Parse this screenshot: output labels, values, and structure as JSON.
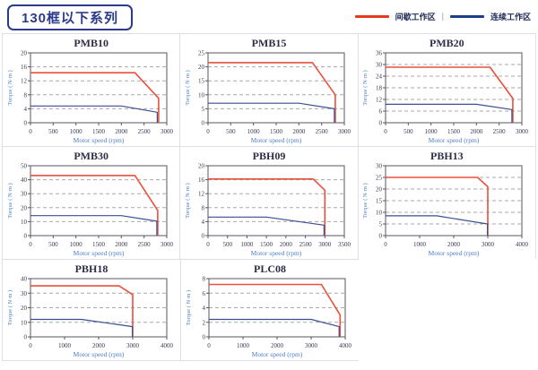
{
  "header": {
    "badge": "130框以下系列"
  },
  "legend": {
    "separator": "|",
    "items": [
      {
        "label": "间歇工作区",
        "color": "#e8391d",
        "icon": "red-line-swatch"
      },
      {
        "label": "连续工作区",
        "color": "#1e3c8c",
        "icon": "blue-line-swatch"
      }
    ]
  },
  "colors": {
    "red": "#e8503c",
    "blue": "#3a4e91",
    "legend_red": "#e8391d",
    "legend_blue": "#1e3c8c",
    "grid": "#a9a9ad",
    "axis": "#55555f",
    "tick_text": "#3a3a50",
    "axis_label": "#4d7fc4",
    "title_text": "#2e2e44",
    "card_border": "#dcdfe9",
    "badge": "#2c3a8c"
  },
  "chart_data": [
    {
      "type": "line",
      "title": "PMB10",
      "xlabel": "Motor speed (rpm)",
      "ylabel": "Torque ( N·m )",
      "xlim": [
        0,
        3000
      ],
      "xticks": [
        0,
        500,
        1000,
        1500,
        2000,
        2500,
        3000
      ],
      "ylim": [
        0,
        20
      ],
      "yticks": [
        0,
        4,
        8,
        12,
        16,
        20
      ],
      "grid": "horizontal-dashed",
      "legend_position": "none",
      "series": [
        {
          "name": "间歇工作区",
          "color": "red",
          "points": [
            [
              0,
              14.3
            ],
            [
              2300,
              14.3
            ],
            [
              2820,
              7
            ],
            [
              2820,
              0
            ]
          ]
        },
        {
          "name": "连续工作区",
          "color": "blue",
          "points": [
            [
              0,
              4.8
            ],
            [
              2000,
              4.8
            ],
            [
              2790,
              3
            ],
            [
              2790,
              0
            ]
          ]
        }
      ]
    },
    {
      "type": "line",
      "title": "PMB15",
      "xlabel": "Motor speed (rpm)",
      "ylabel": "Torque ( N·m )",
      "xlim": [
        0,
        3000
      ],
      "xticks": [
        0,
        500,
        1000,
        1500,
        2000,
        2500,
        3000
      ],
      "ylim": [
        0,
        25
      ],
      "yticks": [
        0,
        5,
        10,
        15,
        20,
        25
      ],
      "grid": "horizontal-dashed",
      "legend_position": "none",
      "series": [
        {
          "name": "间歇工作区",
          "color": "red",
          "points": [
            [
              0,
              21.5
            ],
            [
              2300,
              21.5
            ],
            [
              2800,
              10
            ],
            [
              2800,
              0
            ]
          ]
        },
        {
          "name": "连续工作区",
          "color": "blue",
          "points": [
            [
              0,
              7
            ],
            [
              2000,
              7
            ],
            [
              2780,
              5
            ],
            [
              2780,
              0
            ]
          ]
        }
      ]
    },
    {
      "type": "line",
      "title": "PMB20",
      "xlabel": "Motor speed (rpm)",
      "ylabel": "Torque ( N·m )",
      "xlim": [
        0,
        3000
      ],
      "xticks": [
        0,
        500,
        1000,
        1500,
        2000,
        2500,
        3000
      ],
      "ylim": [
        0,
        36
      ],
      "yticks": [
        0,
        6,
        12,
        18,
        24,
        30,
        36
      ],
      "grid": "horizontal-dashed",
      "legend_position": "none",
      "series": [
        {
          "name": "间歇工作区",
          "color": "red",
          "points": [
            [
              0,
              28.6
            ],
            [
              2300,
              28.6
            ],
            [
              2800,
              12.5
            ],
            [
              2800,
              0
            ]
          ]
        },
        {
          "name": "连续工作区",
          "color": "blue",
          "points": [
            [
              0,
              9.5
            ],
            [
              2000,
              9.5
            ],
            [
              2780,
              6.8
            ],
            [
              2780,
              0
            ]
          ]
        }
      ]
    },
    {
      "type": "line",
      "title": "PMB30",
      "xlabel": "Motor speed (rpm)",
      "ylabel": "Torque ( N·m )",
      "xlim": [
        0,
        3000
      ],
      "xticks": [
        0,
        500,
        1000,
        1500,
        2000,
        2500,
        3000
      ],
      "ylim": [
        0,
        50
      ],
      "yticks": [
        0,
        10,
        20,
        30,
        40,
        50
      ],
      "grid": "horizontal-dashed",
      "legend_position": "none",
      "series": [
        {
          "name": "间歇工作区",
          "color": "red",
          "points": [
            [
              0,
              43
            ],
            [
              2300,
              43
            ],
            [
              2800,
              18
            ],
            [
              2800,
              0
            ]
          ]
        },
        {
          "name": "连续工作区",
          "color": "blue",
          "points": [
            [
              0,
              14.3
            ],
            [
              2000,
              14.3
            ],
            [
              2780,
              10.3
            ],
            [
              2780,
              0
            ]
          ]
        }
      ]
    },
    {
      "type": "line",
      "title": "PBH09",
      "xlabel": "Motor speed (rpm)",
      "ylabel": "Torque ( N·m )",
      "xlim": [
        0,
        3500
      ],
      "xticks": [
        0,
        500,
        1000,
        1500,
        2000,
        2500,
        3000,
        3500
      ],
      "ylim": [
        0,
        20
      ],
      "yticks": [
        0,
        4,
        8,
        12,
        16,
        20
      ],
      "grid": "horizontal-dashed",
      "legend_position": "none",
      "series": [
        {
          "name": "间歇工作区",
          "color": "red",
          "points": [
            [
              0,
              16.2
            ],
            [
              2700,
              16.2
            ],
            [
              3000,
              13
            ],
            [
              3000,
              0
            ]
          ]
        },
        {
          "name": "连续工作区",
          "color": "blue",
          "points": [
            [
              0,
              5.3
            ],
            [
              1500,
              5.3
            ],
            [
              2980,
              3
            ],
            [
              2980,
              0
            ]
          ]
        }
      ]
    },
    {
      "type": "line",
      "title": "PBH13",
      "xlabel": "Motor speed (rpm)",
      "ylabel": "Torque ( N·m )",
      "xlim": [
        0,
        4000
      ],
      "xticks": [
        0,
        1000,
        2000,
        3000,
        4000
      ],
      "ylim": [
        0,
        30
      ],
      "yticks": [
        0,
        5,
        10,
        15,
        20,
        25,
        30
      ],
      "grid": "horizontal-dashed",
      "legend_position": "none",
      "series": [
        {
          "name": "间歇工作区",
          "color": "red",
          "points": [
            [
              0,
              25
            ],
            [
              2700,
              25
            ],
            [
              3000,
              21
            ],
            [
              3000,
              0
            ]
          ]
        },
        {
          "name": "连续工作区",
          "color": "blue",
          "points": [
            [
              0,
              8.5
            ],
            [
              1500,
              8.5
            ],
            [
              2990,
              5
            ],
            [
              2990,
              0
            ]
          ]
        }
      ]
    },
    {
      "type": "line",
      "title": "PBH18",
      "xlabel": "Motor speed (rpm)",
      "ylabel": "Torque ( N·m )",
      "xlim": [
        0,
        4000
      ],
      "xticks": [
        0,
        1000,
        2000,
        3000,
        4000
      ],
      "ylim": [
        0,
        40
      ],
      "yticks": [
        0,
        10,
        20,
        30,
        40
      ],
      "grid": "horizontal-dashed",
      "legend_position": "none",
      "series": [
        {
          "name": "间歇工作区",
          "color": "red",
          "points": [
            [
              0,
              35
            ],
            [
              2600,
              35
            ],
            [
              3000,
              29
            ],
            [
              3000,
              0
            ]
          ]
        },
        {
          "name": "连续工作区",
          "color": "blue",
          "points": [
            [
              0,
              12
            ],
            [
              1500,
              12
            ],
            [
              2990,
              7
            ],
            [
              2990,
              0
            ]
          ]
        }
      ]
    },
    {
      "type": "line",
      "title": "PLC08",
      "xlabel": "Motor speed (rpm)",
      "ylabel": "Torque ( N·m )",
      "xlim": [
        0,
        4000
      ],
      "xticks": [
        0,
        1000,
        2000,
        3000,
        4000
      ],
      "ylim": [
        0,
        8
      ],
      "yticks": [
        0,
        2,
        4,
        6,
        8
      ],
      "grid": "horizontal-dashed",
      "legend_position": "none",
      "series": [
        {
          "name": "间歇工作区",
          "color": "red",
          "points": [
            [
              0,
              7.2
            ],
            [
              3300,
              7.2
            ],
            [
              3850,
              3
            ],
            [
              3850,
              0
            ]
          ]
        },
        {
          "name": "连续工作区",
          "color": "blue",
          "points": [
            [
              0,
              2.4
            ],
            [
              3000,
              2.4
            ],
            [
              3820,
              1.4
            ],
            [
              3820,
              0
            ]
          ]
        }
      ]
    }
  ]
}
